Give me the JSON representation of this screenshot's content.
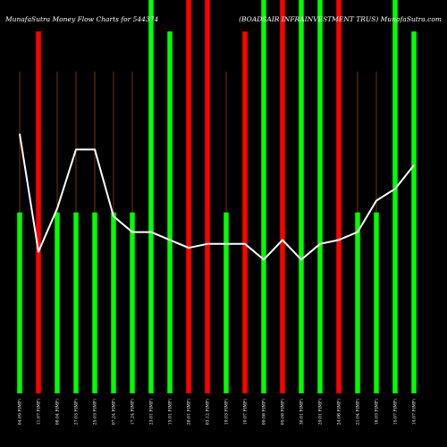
{
  "chart_data": {
    "type": "bar",
    "title_left": "MunafaSutra  Money Flow  Charts for 544374",
    "title_right": "(BOADSAIR INFRAINVESTMENT TRUS) MunafaSutra.com",
    "categories": [
      "04.09 F(MF)",
      "11.07 F(MF)",
      "08.04 F(MF)",
      "27.03 F(MF)",
      "25.03 F(MF)",
      "07.24 F(MF)",
      "17.24 F(MF)",
      "23.01 F(MF)",
      "15.01 F(MF)",
      "28.01 F(MF)",
      "03.12 F(MF)",
      "19.03 F(MF)",
      "10.07 F(MF)",
      "09.08 F(MF)",
      "05.08 F(MF)",
      "30.01 F(MF)",
      "29.01 F(MF)",
      "24.06 F(MF)",
      "21.04 F(MF)",
      "16.03 F(MF)",
      "15.07 F(MF)",
      "14.07 F(MF)"
    ],
    "colors": {
      "up": "#00ff00",
      "down": "#ff0000",
      "line": "#ffffff",
      "guide": "#8b4513",
      "background": "#000000",
      "text": "#ffffff"
    },
    "series": [
      {
        "kind": "bar",
        "values": [
          0.46,
          0.92,
          0.46,
          0.46,
          0.46,
          0.46,
          0.46,
          1.0,
          0.92,
          1.0,
          1.0,
          0.46,
          0.92,
          1.0,
          1.0,
          1.0,
          1.0,
          1.0,
          0.46,
          0.46,
          1.0,
          0.92
        ],
        "directions": [
          "up",
          "down",
          "up",
          "up",
          "up",
          "up",
          "up",
          "up",
          "up",
          "down",
          "down",
          "up",
          "down",
          "up",
          "down",
          "up",
          "up",
          "down",
          "up",
          "up",
          "up",
          "up"
        ]
      },
      {
        "kind": "line",
        "values": [
          0.66,
          0.36,
          0.47,
          0.62,
          0.62,
          0.45,
          0.41,
          0.41,
          0.39,
          0.37,
          0.38,
          0.38,
          0.38,
          0.34,
          0.39,
          0.34,
          0.38,
          0.39,
          0.41,
          0.49,
          0.52,
          0.58
        ]
      }
    ],
    "ylim": [
      0,
      1
    ],
    "grid": true
  }
}
